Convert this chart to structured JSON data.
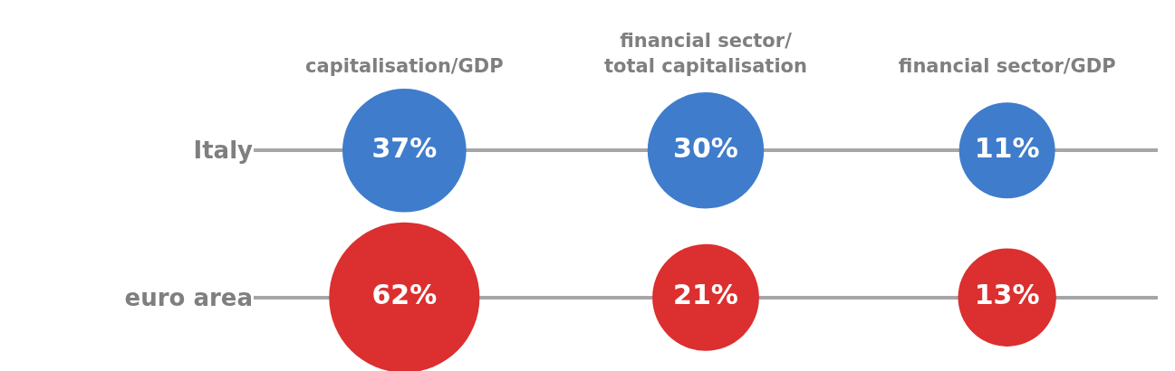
{
  "chart_data": {
    "type": "other",
    "categories": [
      "capitalisation/GDP",
      "financial sector/\ntotal capitalisation",
      "financial sector/GDP"
    ],
    "y_categories": [
      "Italy",
      "euro area"
    ],
    "series": [
      {
        "color": "#3f7ccc",
        "values": [
          37,
          30,
          11
        ],
        "value_labels": [
          "37%",
          "30%",
          "11%"
        ]
      },
      {
        "color": "#dc2f2f",
        "values": [
          62,
          21,
          13
        ],
        "value_labels": [
          "62%",
          "21%",
          "13%"
        ]
      }
    ]
  }
}
